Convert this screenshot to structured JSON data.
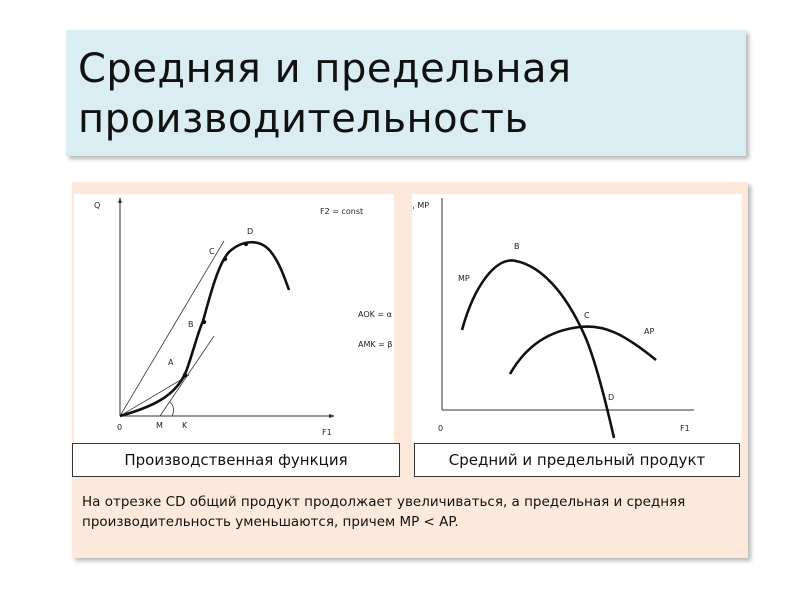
{
  "title": {
    "line1": "Средняя и предельная",
    "line2": "производительность"
  },
  "left_chart": {
    "y_axis_label": "Q",
    "x_axis_label": "F1",
    "origin_label": "0",
    "condition": "F2 = const",
    "eq1": "AOK = α",
    "eq2": "AMK = β",
    "points": {
      "A": "A",
      "B": "B",
      "C": "C",
      "D": "D",
      "M": "M",
      "K": "K"
    }
  },
  "right_chart": {
    "y_axis_label": "AP, MP",
    "x_axis_label": "F1",
    "origin_label": "0",
    "mp_label": "MP",
    "ap_label": "AP",
    "points": {
      "B": "B",
      "C": "C",
      "D": "D"
    }
  },
  "captions": {
    "left": "Производственная функция",
    "right": "Средний и предельный продукт"
  },
  "note": "На отрезке CD общий продукт продолжает увеличиваться, а предельная и средняя производительность уменьшаются, причем MP < AP.",
  "colors": {
    "title_bg": "#daedf2",
    "panel_bg": "#fce9dc"
  }
}
